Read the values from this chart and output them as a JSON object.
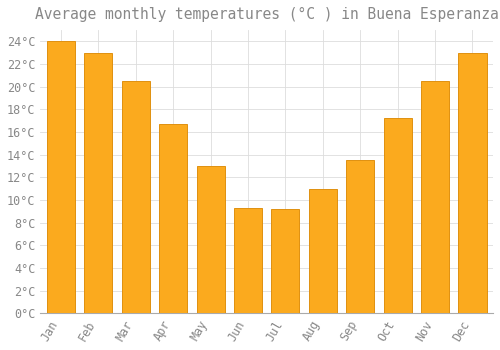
{
  "title": "Average monthly temperatures (°C ) in Buena Esperanza",
  "months": [
    "Jan",
    "Feb",
    "Mar",
    "Apr",
    "May",
    "Jun",
    "Jul",
    "Aug",
    "Sep",
    "Oct",
    "Nov",
    "Dec"
  ],
  "values": [
    24.0,
    23.0,
    20.5,
    16.7,
    13.0,
    9.3,
    9.2,
    11.0,
    13.5,
    17.2,
    20.5,
    23.0
  ],
  "bar_color": "#FBAA1E",
  "bar_edge_color": "#E09010",
  "background_color": "#FFFFFF",
  "grid_color": "#DDDDDD",
  "text_color": "#888888",
  "ylim": [
    0,
    25
  ],
  "yticks": [
    0,
    2,
    4,
    6,
    8,
    10,
    12,
    14,
    16,
    18,
    20,
    22,
    24
  ],
  "title_fontsize": 10.5,
  "tick_fontsize": 8.5
}
